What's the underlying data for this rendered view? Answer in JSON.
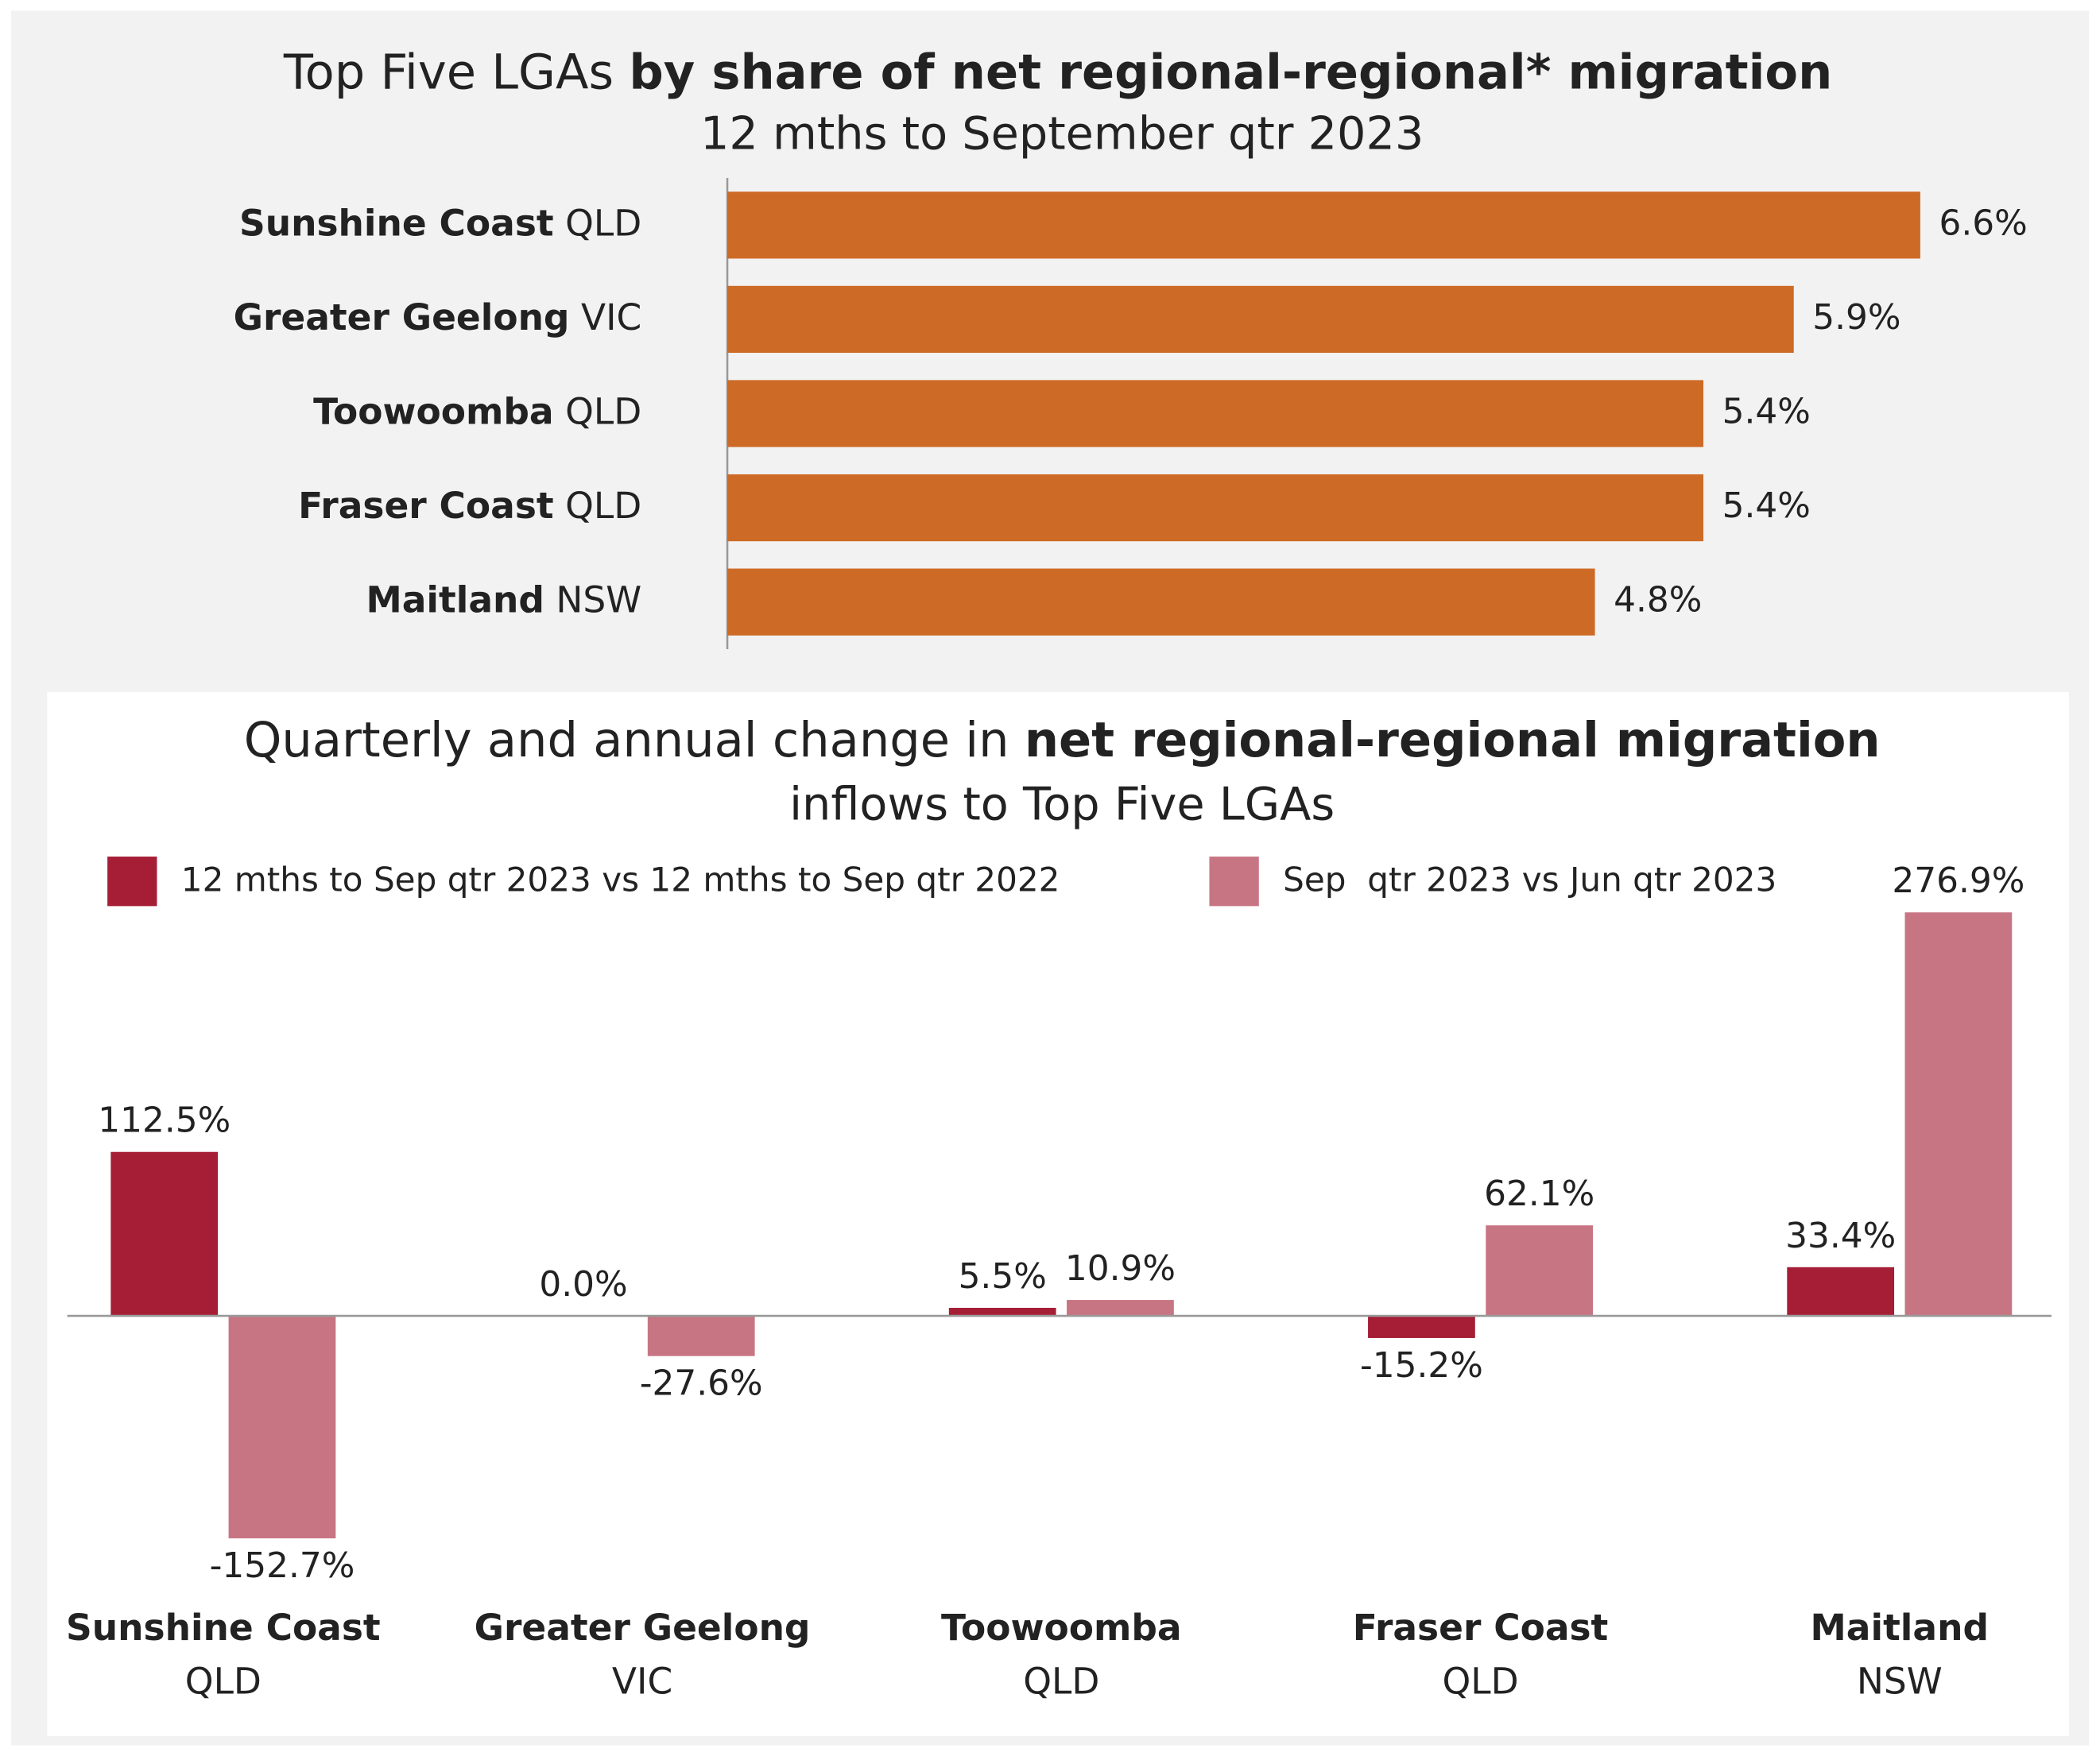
{
  "chart_data": [
    {
      "type": "hbar",
      "title": "Top Five LGAs ",
      "title_bold": "by share of net regional-regional* migration",
      "subtitle": "12 mths to September qtr 2023",
      "categories": [
        {
          "name": "Sunshine Coast",
          "state": "QLD"
        },
        {
          "name": "Greater Geelong",
          "state": "VIC"
        },
        {
          "name": "Toowoomba",
          "state": "QLD"
        },
        {
          "name": "Fraser Coast",
          "state": "QLD"
        },
        {
          "name": "Maitland",
          "state": "NSW"
        }
      ],
      "values": [
        6.6,
        5.9,
        5.4,
        5.4,
        4.8
      ],
      "value_labels": [
        "6.6%",
        "5.9%",
        "5.4%",
        "5.4%",
        "4.8%"
      ],
      "color": "#cd6a25",
      "xlim": [
        0,
        7.4
      ]
    },
    {
      "type": "grouped-bar",
      "title": "Quarterly and annual change in ",
      "title_bold": "net regional-regional migration",
      "subtitle": "inflows to Top Five LGAs",
      "categories": [
        {
          "name": "Sunshine Coast",
          "state": "QLD"
        },
        {
          "name": "Greater Geelong",
          "state": "VIC"
        },
        {
          "name": "Toowoomba",
          "state": "QLD"
        },
        {
          "name": "Fraser Coast",
          "state": "QLD"
        },
        {
          "name": "Maitland",
          "state": "NSW"
        }
      ],
      "series": [
        {
          "name": "12 mths to Sep qtr 2023 vs 12 mths to Sep qtr 2022",
          "color": "#a51e36",
          "values": [
            112.5,
            0.0,
            5.5,
            -15.2,
            33.4
          ],
          "value_labels": [
            "112.5%",
            "0.0%",
            "5.5%",
            "-15.2%",
            "33.4%"
          ]
        },
        {
          "name": "Sep  qtr 2023 vs Jun qtr 2023",
          "color": "#c87583",
          "values": [
            -152.7,
            -27.6,
            10.9,
            62.1,
            276.9
          ],
          "value_labels": [
            "-152.7%",
            "-27.6%",
            "10.9%",
            "62.1%",
            "276.9%"
          ]
        }
      ],
      "ylim": [
        -190,
        306
      ]
    }
  ]
}
